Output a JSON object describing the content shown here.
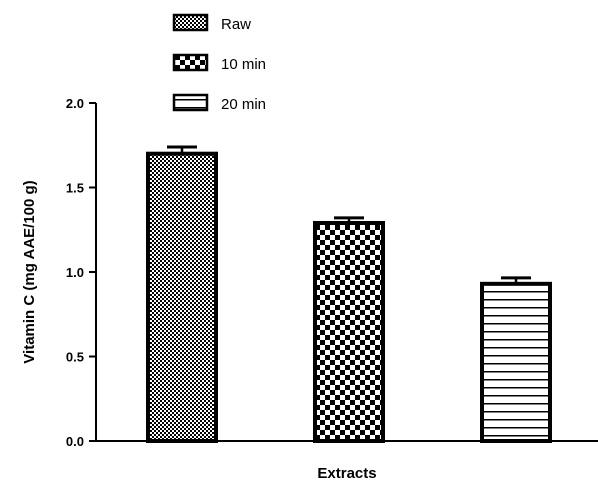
{
  "chart_data": {
    "type": "bar",
    "categories": [
      "Raw",
      "10 min",
      "20 min"
    ],
    "values": [
      1.7,
      1.29,
      0.93
    ],
    "errors": [
      0.04,
      0.03,
      0.035
    ],
    "xlabel": "Extracts",
    "ylabel": "Vitamin C (mg AAE/100 g)",
    "ylim": [
      0,
      2.0
    ],
    "yticks": [
      "0.0",
      "0.5",
      "1.0",
      "1.5",
      "2.0"
    ],
    "ytick_values": [
      0,
      0.5,
      1.0,
      1.5,
      2.0
    ],
    "legend": {
      "placement": "top-left",
      "entries": [
        "Raw",
        "10 min",
        "20 min"
      ]
    },
    "bar_patterns": [
      "fine-checker",
      "coarse-checker",
      "horizontal-lines"
    ],
    "colors": {
      "bar_border": "#000000",
      "background": "#ffffff"
    },
    "grid": false
  }
}
